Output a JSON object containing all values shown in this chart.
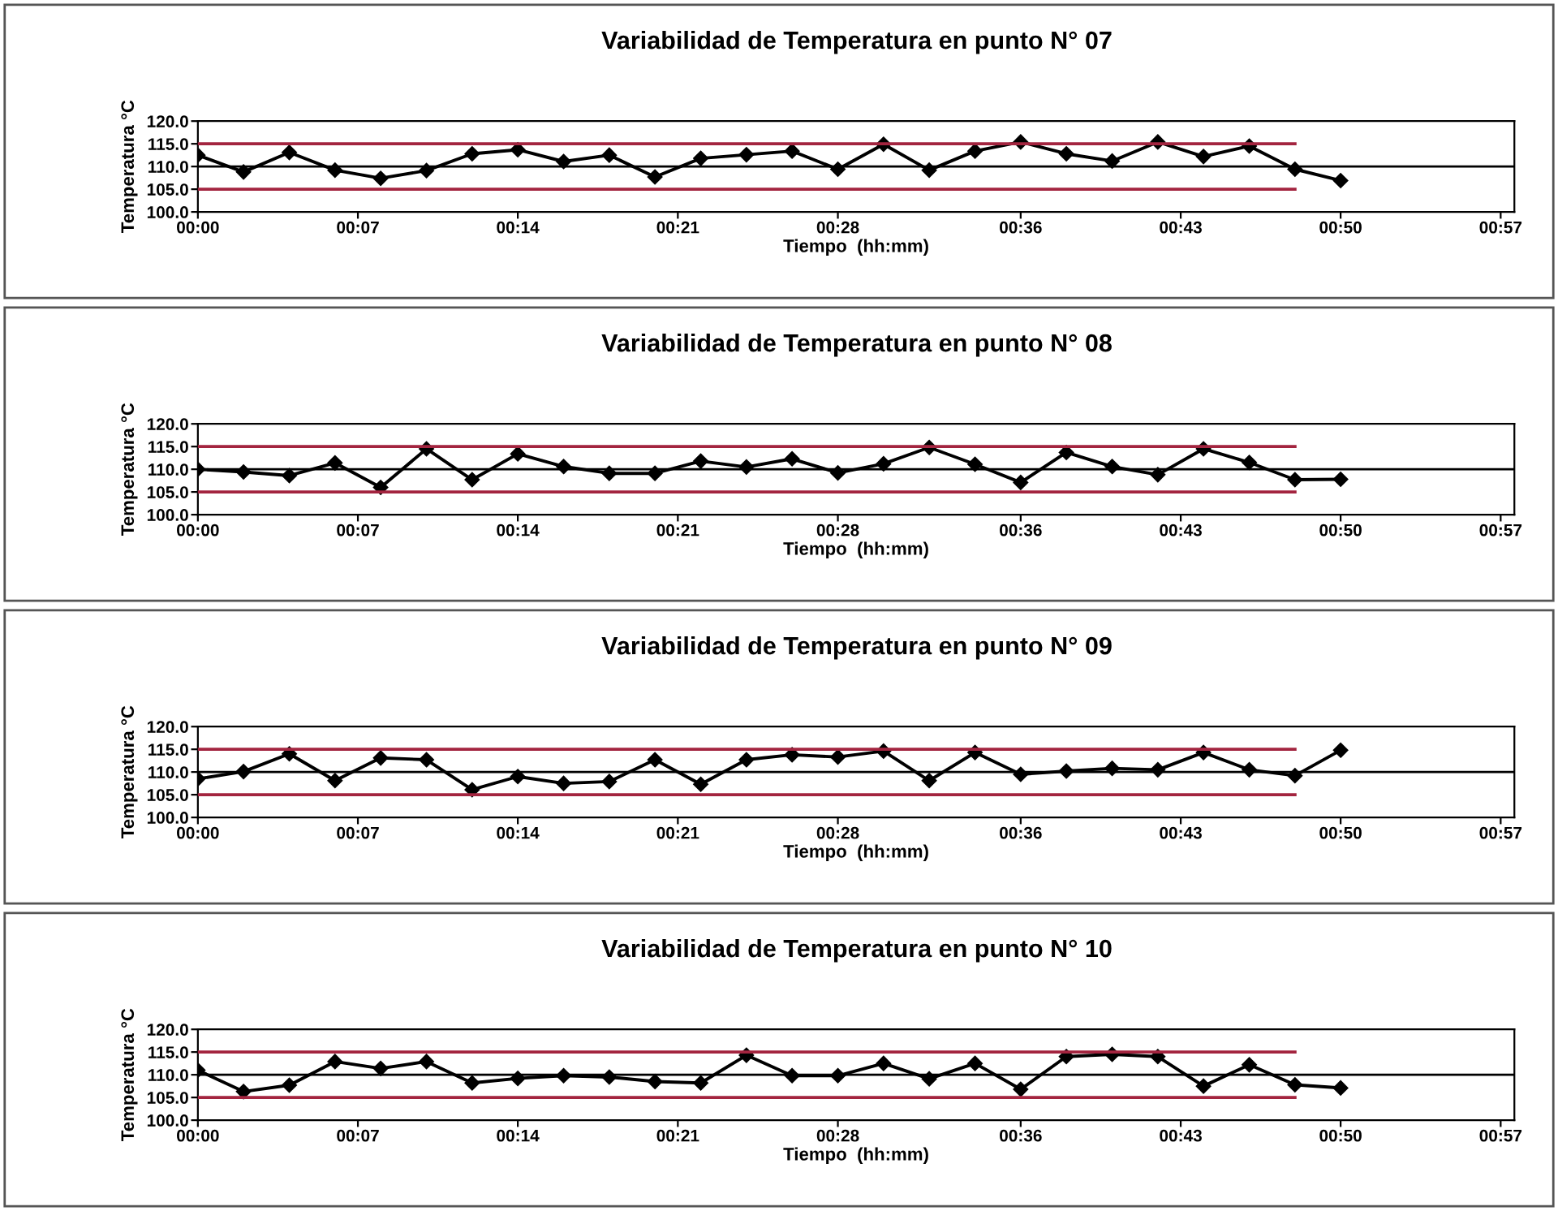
{
  "chart_data": [
    {
      "type": "line",
      "title": "Variabilidad de Temperatura en punto N° 07",
      "xlabel": "Tiempo  (hh:mm)",
      "ylabel": "Temperatura °C",
      "marker": "diamond",
      "grid": false,
      "x": [
        0,
        0.0333,
        0.0667,
        0.1,
        0.1333,
        0.1667,
        0.2,
        0.2333,
        0.2667,
        0.3,
        0.3333,
        0.3667,
        0.4,
        0.4333,
        0.4667,
        0.5,
        0.5333,
        0.5667,
        0.6,
        0.6333,
        0.6667,
        0.7,
        0.7333,
        0.7667,
        0.8,
        0.8333
      ],
      "series": [
        {
          "color": "#000000",
          "values": [
            112.5,
            108.8,
            113.1,
            109.2,
            107.4,
            109.1,
            112.8,
            113.7,
            111.1,
            112.5,
            107.7,
            111.8,
            112.6,
            113.4,
            109.4,
            114.9,
            109.2,
            113.4,
            115.4,
            112.8,
            111.2,
            115.4,
            112.2,
            114.5,
            109.4,
            106.9
          ]
        },
        {
          "type": "line",
          "color": "#a3243f",
          "marker": "none",
          "values": [
            115,
            115,
            115,
            115,
            115,
            115,
            115,
            115,
            115,
            115,
            115,
            115,
            115,
            115,
            115,
            115,
            115,
            115,
            115,
            115,
            115,
            115,
            115,
            115,
            115,
            null
          ]
        },
        {
          "type": "line",
          "color": "#a3243f",
          "marker": "none",
          "values": [
            105,
            105,
            105,
            105,
            105,
            105,
            105,
            105,
            105,
            105,
            105,
            105,
            105,
            105,
            105,
            105,
            105,
            105,
            105,
            105,
            105,
            105,
            105,
            105,
            105,
            null
          ]
        }
      ],
      "ref_lines": [
        {
          "axis": "y",
          "value": 110,
          "color": "#000000"
        }
      ],
      "xlim": [
        0,
        0.96
      ],
      "ylim": [
        100,
        120
      ],
      "xticks": [
        {
          "value": 0,
          "label": "00:00"
        },
        {
          "value": 0.1167,
          "label": "00:07"
        },
        {
          "value": 0.2333,
          "label": "00:14"
        },
        {
          "value": 0.35,
          "label": "00:21"
        },
        {
          "value": 0.4667,
          "label": "00:28"
        },
        {
          "value": 0.6,
          "label": "00:36"
        },
        {
          "value": 0.7167,
          "label": "00:43"
        },
        {
          "value": 0.8333,
          "label": "00:50"
        },
        {
          "value": 0.95,
          "label": "00:57"
        }
      ],
      "yticks": [
        {
          "value": 100,
          "label": "100.0"
        },
        {
          "value": 105,
          "label": "105.0"
        },
        {
          "value": 110,
          "label": "110.0"
        },
        {
          "value": 115,
          "label": "115.0"
        },
        {
          "value": 120,
          "label": "120.0"
        }
      ]
    },
    {
      "type": "line",
      "title": "Variabilidad de Temperatura en punto N° 08",
      "xlabel": "Tiempo  (hh:mm)",
      "ylabel": "Temperatura °C",
      "marker": "diamond",
      "grid": false,
      "x": [
        0,
        0.0333,
        0.0667,
        0.1,
        0.1333,
        0.1667,
        0.2,
        0.2333,
        0.2667,
        0.3,
        0.3333,
        0.3667,
        0.4,
        0.4333,
        0.4667,
        0.5,
        0.5333,
        0.5667,
        0.6,
        0.6333,
        0.6667,
        0.7,
        0.7333,
        0.7667,
        0.8,
        0.8333
      ],
      "series": [
        {
          "color": "#000000",
          "values": [
            110.0,
            109.4,
            108.6,
            111.4,
            106.0,
            114.5,
            107.7,
            113.4,
            110.6,
            109.1,
            109.1,
            111.8,
            110.5,
            112.3,
            109.2,
            111.2,
            114.8,
            111.1,
            107.1,
            113.7,
            110.6,
            108.8,
            114.5,
            111.5,
            107.7,
            107.8
          ]
        },
        {
          "type": "line",
          "color": "#a3243f",
          "marker": "none",
          "values": [
            115,
            115,
            115,
            115,
            115,
            115,
            115,
            115,
            115,
            115,
            115,
            115,
            115,
            115,
            115,
            115,
            115,
            115,
            115,
            115,
            115,
            115,
            115,
            115,
            115,
            null
          ]
        },
        {
          "type": "line",
          "color": "#a3243f",
          "marker": "none",
          "values": [
            105,
            105,
            105,
            105,
            105,
            105,
            105,
            105,
            105,
            105,
            105,
            105,
            105,
            105,
            105,
            105,
            105,
            105,
            105,
            105,
            105,
            105,
            105,
            105,
            105,
            null
          ]
        }
      ],
      "ref_lines": [
        {
          "axis": "y",
          "value": 110,
          "color": "#000000"
        }
      ],
      "xlim": [
        0,
        0.96
      ],
      "ylim": [
        100,
        120
      ],
      "xticks": [
        {
          "value": 0,
          "label": "00:00"
        },
        {
          "value": 0.1167,
          "label": "00:07"
        },
        {
          "value": 0.2333,
          "label": "00:14"
        },
        {
          "value": 0.35,
          "label": "00:21"
        },
        {
          "value": 0.4667,
          "label": "00:28"
        },
        {
          "value": 0.6,
          "label": "00:36"
        },
        {
          "value": 0.7167,
          "label": "00:43"
        },
        {
          "value": 0.8333,
          "label": "00:50"
        },
        {
          "value": 0.95,
          "label": "00:57"
        }
      ],
      "yticks": [
        {
          "value": 100,
          "label": "100.0"
        },
        {
          "value": 105,
          "label": "105.0"
        },
        {
          "value": 110,
          "label": "110.0"
        },
        {
          "value": 115,
          "label": "115.0"
        },
        {
          "value": 120,
          "label": "120.0"
        }
      ]
    },
    {
      "type": "line",
      "title": "Variabilidad de Temperatura en punto N° 09",
      "xlabel": "Tiempo  (hh:mm)",
      "ylabel": "Temperatura °C",
      "marker": "diamond",
      "grid": false,
      "x": [
        0,
        0.0333,
        0.0667,
        0.1,
        0.1333,
        0.1667,
        0.2,
        0.2333,
        0.2667,
        0.3,
        0.3333,
        0.3667,
        0.4,
        0.4333,
        0.4667,
        0.5,
        0.5333,
        0.5667,
        0.6,
        0.6333,
        0.6667,
        0.7,
        0.7333,
        0.7667,
        0.8,
        0.8333
      ],
      "series": [
        {
          "color": "#000000",
          "values": [
            108.5,
            110.1,
            114.0,
            108.1,
            113.1,
            112.7,
            106.1,
            109.0,
            107.5,
            107.9,
            112.7,
            107.3,
            112.7,
            113.8,
            113.3,
            114.6,
            108.1,
            114.3,
            109.5,
            110.2,
            110.8,
            110.5,
            114.3,
            110.5,
            109.2,
            114.8
          ]
        },
        {
          "type": "line",
          "color": "#a3243f",
          "marker": "none",
          "values": [
            115,
            115,
            115,
            115,
            115,
            115,
            115,
            115,
            115,
            115,
            115,
            115,
            115,
            115,
            115,
            115,
            115,
            115,
            115,
            115,
            115,
            115,
            115,
            115,
            115,
            null
          ]
        },
        {
          "type": "line",
          "color": "#a3243f",
          "marker": "none",
          "values": [
            105,
            105,
            105,
            105,
            105,
            105,
            105,
            105,
            105,
            105,
            105,
            105,
            105,
            105,
            105,
            105,
            105,
            105,
            105,
            105,
            105,
            105,
            105,
            105,
            105,
            null
          ]
        }
      ],
      "ref_lines": [
        {
          "axis": "y",
          "value": 110,
          "color": "#000000"
        }
      ],
      "xlim": [
        0,
        0.96
      ],
      "ylim": [
        100,
        120
      ],
      "xticks": [
        {
          "value": 0,
          "label": "00:00"
        },
        {
          "value": 0.1167,
          "label": "00:07"
        },
        {
          "value": 0.2333,
          "label": "00:14"
        },
        {
          "value": 0.35,
          "label": "00:21"
        },
        {
          "value": 0.4667,
          "label": "00:28"
        },
        {
          "value": 0.6,
          "label": "00:36"
        },
        {
          "value": 0.7167,
          "label": "00:43"
        },
        {
          "value": 0.8333,
          "label": "00:50"
        },
        {
          "value": 0.95,
          "label": "00:57"
        }
      ],
      "yticks": [
        {
          "value": 100,
          "label": "100.0"
        },
        {
          "value": 105,
          "label": "105.0"
        },
        {
          "value": 110,
          "label": "110.0"
        },
        {
          "value": 115,
          "label": "115.0"
        },
        {
          "value": 120,
          "label": "120.0"
        }
      ]
    },
    {
      "type": "line",
      "title": "Variabilidad de Temperatura en punto N° 10",
      "xlabel": "Tiempo  (hh:mm)",
      "ylabel": "Temperatura °C",
      "marker": "diamond",
      "grid": false,
      "x": [
        0,
        0.0333,
        0.0667,
        0.1,
        0.1333,
        0.1667,
        0.2,
        0.2333,
        0.2667,
        0.3,
        0.3333,
        0.3667,
        0.4,
        0.4333,
        0.4667,
        0.5,
        0.5333,
        0.5667,
        0.6,
        0.6333,
        0.6667,
        0.7,
        0.7333,
        0.7667,
        0.8,
        0.8333
      ],
      "series": [
        {
          "color": "#000000",
          "values": [
            111.0,
            106.3,
            107.7,
            112.9,
            111.4,
            112.9,
            108.2,
            109.2,
            109.8,
            109.5,
            108.5,
            108.2,
            114.3,
            109.8,
            109.8,
            112.5,
            109.1,
            112.5,
            106.8,
            114.0,
            114.5,
            114.0,
            107.5,
            112.2,
            107.8,
            107.1
          ]
        },
        {
          "type": "line",
          "color": "#a3243f",
          "marker": "none",
          "values": [
            115,
            115,
            115,
            115,
            115,
            115,
            115,
            115,
            115,
            115,
            115,
            115,
            115,
            115,
            115,
            115,
            115,
            115,
            115,
            115,
            115,
            115,
            115,
            115,
            115,
            null
          ]
        },
        {
          "type": "line",
          "color": "#a3243f",
          "marker": "none",
          "values": [
            105,
            105,
            105,
            105,
            105,
            105,
            105,
            105,
            105,
            105,
            105,
            105,
            105,
            105,
            105,
            105,
            105,
            105,
            105,
            105,
            105,
            105,
            105,
            105,
            105,
            null
          ]
        }
      ],
      "ref_lines": [
        {
          "axis": "y",
          "value": 110,
          "color": "#000000"
        }
      ],
      "xlim": [
        0,
        0.96
      ],
      "ylim": [
        100,
        120
      ],
      "xticks": [
        {
          "value": 0,
          "label": "00:00"
        },
        {
          "value": 0.1167,
          "label": "00:07"
        },
        {
          "value": 0.2333,
          "label": "00:14"
        },
        {
          "value": 0.35,
          "label": "00:21"
        },
        {
          "value": 0.4667,
          "label": "00:28"
        },
        {
          "value": 0.6,
          "label": "00:36"
        },
        {
          "value": 0.7167,
          "label": "00:43"
        },
        {
          "value": 0.8333,
          "label": "00:50"
        },
        {
          "value": 0.95,
          "label": "00:57"
        }
      ],
      "yticks": [
        {
          "value": 100,
          "label": "100.0"
        },
        {
          "value": 105,
          "label": "105.0"
        },
        {
          "value": 110,
          "label": "110.0"
        },
        {
          "value": 115,
          "label": "115.0"
        },
        {
          "value": 120,
          "label": "120.0"
        }
      ]
    }
  ]
}
